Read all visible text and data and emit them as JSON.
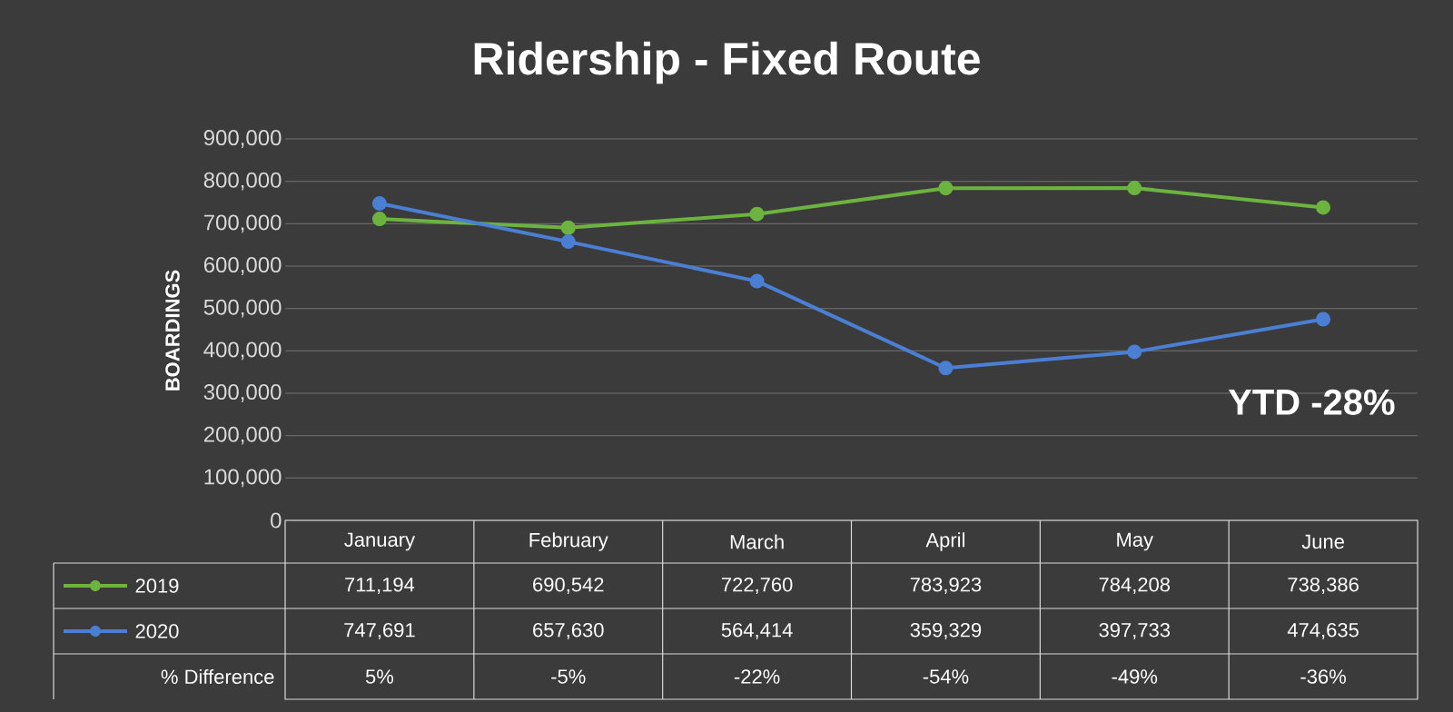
{
  "chart_data": {
    "type": "line",
    "title": "Ridership - Fixed Route",
    "ylabel": "BOARDINGS",
    "categories": [
      "January",
      "February",
      "March",
      "April",
      "May",
      "June"
    ],
    "series": [
      {
        "name": "2019",
        "color": "#6cb33f",
        "values": [
          711194,
          690542,
          722760,
          783923,
          784208,
          738386
        ],
        "value_labels": [
          "711,194",
          "690,542",
          "722,760",
          "783,923",
          "784,208",
          "738,386"
        ]
      },
      {
        "name": "2020",
        "color": "#4a7fd4",
        "values": [
          747691,
          657630,
          564414,
          359329,
          397733,
          474635
        ],
        "value_labels": [
          "747,691",
          "657,630",
          "564,414",
          "359,329",
          "397,733",
          "474,635"
        ]
      }
    ],
    "ylim": [
      0,
      900000
    ],
    "yticks": [
      0,
      {
        "value": 100000,
        "label": "100,000"
      },
      {
        "value": 200000,
        "label": "200,000"
      },
      {
        "value": 300000,
        "label": "300,000"
      },
      {
        "value": 400000,
        "label": "400,000"
      },
      {
        "value": 500000,
        "label": "500,000"
      },
      {
        "value": 600000,
        "label": "600,000"
      },
      {
        "value": 700000,
        "label": "700,000"
      },
      {
        "value": 800000,
        "label": "800,000"
      },
      {
        "value": 900000,
        "label": "900,000"
      }
    ],
    "grid": "y",
    "marker": "circle",
    "line_style": "solid",
    "legend": "bottom left",
    "annotations": [
      "YTD -28%",
      "% Difference",
      "5%",
      "-5%",
      "-22%",
      "-54%",
      "-49%",
      "-36%"
    ]
  }
}
